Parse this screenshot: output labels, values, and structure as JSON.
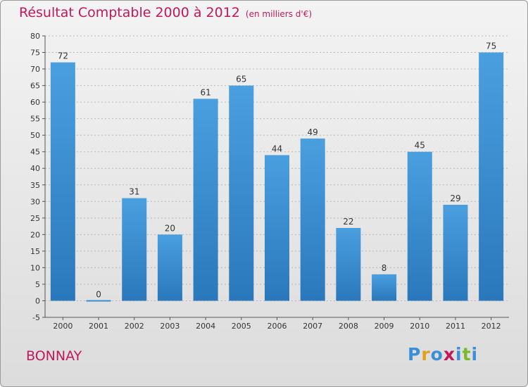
{
  "chart_data": {
    "type": "bar",
    "title": "Résultat Comptable 2000 à 2012",
    "subtitle": "(en milliers d'€)",
    "categories": [
      "2000",
      "2001",
      "2002",
      "2003",
      "2004",
      "2005",
      "2006",
      "2007",
      "2008",
      "2009",
      "2010",
      "2011",
      "2012"
    ],
    "values": [
      72,
      0,
      31,
      20,
      61,
      65,
      44,
      49,
      22,
      8,
      45,
      29,
      75
    ],
    "ylim": [
      -5,
      80
    ],
    "yticks": [
      80,
      75,
      70,
      65,
      60,
      55,
      50,
      45,
      40,
      35,
      30,
      25,
      20,
      15,
      10,
      5,
      0,
      -5
    ],
    "xlabel": "",
    "ylabel": "",
    "grid": true,
    "bar_color": "#4a9fdf",
    "bar_color_dark": "#2a78bb"
  },
  "footer": {
    "commune": "BONNAY",
    "logo_letters": [
      "P",
      "r",
      "o",
      "x",
      "i",
      "t",
      "i"
    ],
    "logo_colors": [
      "#3a8fd8",
      "#e0a020",
      "#3a8fd8",
      "#c2185b",
      "#3a8fd8",
      "#7ab82e",
      "#3a8fd8"
    ]
  },
  "colors": {
    "title": "#c2185b",
    "axis": "#555555"
  }
}
